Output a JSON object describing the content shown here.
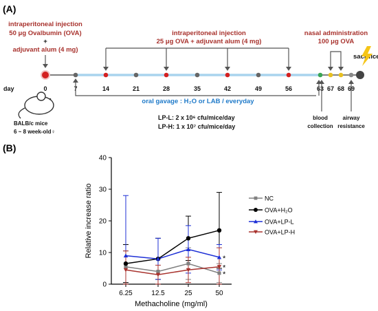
{
  "panel_a": {
    "label": "(A)",
    "injection1": [
      "intraperitoneal injection",
      "50 μg Ovalbumin (OVA)",
      "+",
      "adjuvant alum (4 mg)"
    ],
    "injection2": [
      "intraperitoneal injection",
      "25 μg OVA + adjuvant alum (4 mg)"
    ],
    "nasal": [
      "nasal administration",
      "100 μg OVA"
    ],
    "sacrifice": "sacrifice",
    "day_word": "day",
    "days": [
      "0",
      "7",
      "14",
      "21",
      "28",
      "35",
      "42",
      "49",
      "56",
      "63",
      "67",
      "68",
      "69"
    ],
    "mouse": [
      "BALB/c mice",
      "6 ~ 8 week-old♀"
    ],
    "gavage": "oral gavage : H₂O or LAB / everyday",
    "lp_l": "LP-L:  2 x 10⁶ cfu/mice/day",
    "lp_h": "LP-H:  1 x 10⁷ cfu/mice/day",
    "blood": [
      "blood",
      "collection"
    ],
    "airway": [
      "airway",
      "resistance"
    ],
    "colors": {
      "accent_red": "#a8322d",
      "gavage_blue": "#1f7ac9",
      "timeline_blue": "#a9d4ee"
    }
  },
  "panel_b": {
    "label": "(B)",
    "significance": "*",
    "chart_data": {
      "type": "line",
      "categories": [
        "6.25",
        "12.5",
        "25",
        "50"
      ],
      "xlabel": "Methacholine (mg/ml)",
      "ylabel": "Relative increase ratio",
      "ylim": [
        0,
        40
      ],
      "yticks": [
        "0",
        "10",
        "20",
        "30",
        "40"
      ],
      "grid": false,
      "legend": "right",
      "series": [
        {
          "name": "NC",
          "color": "#808080",
          "marker": "square",
          "values": [
            5.5,
            4.0,
            6.5,
            3.5
          ],
          "err": [
            5,
            4,
            5,
            3
          ]
        },
        {
          "name": "OVA+H₂O",
          "color": "#000000",
          "marker": "circle",
          "values": [
            6.5,
            8.0,
            14.5,
            17.0
          ],
          "err": [
            6,
            6.5,
            7,
            12
          ]
        },
        {
          "name": "OVA+LP-L",
          "color": "#1d2fd6",
          "marker": "triangle-up",
          "values": [
            9.0,
            8.0,
            11.0,
            8.5
          ],
          "err": [
            19,
            6.5,
            7.5,
            4
          ]
        },
        {
          "name": "OVA+LP-H",
          "color": "#a8322d",
          "marker": "triangle-down",
          "values": [
            4.5,
            3.0,
            4.5,
            5.5
          ],
          "err": [
            6,
            3,
            4,
            6
          ]
        }
      ]
    }
  }
}
